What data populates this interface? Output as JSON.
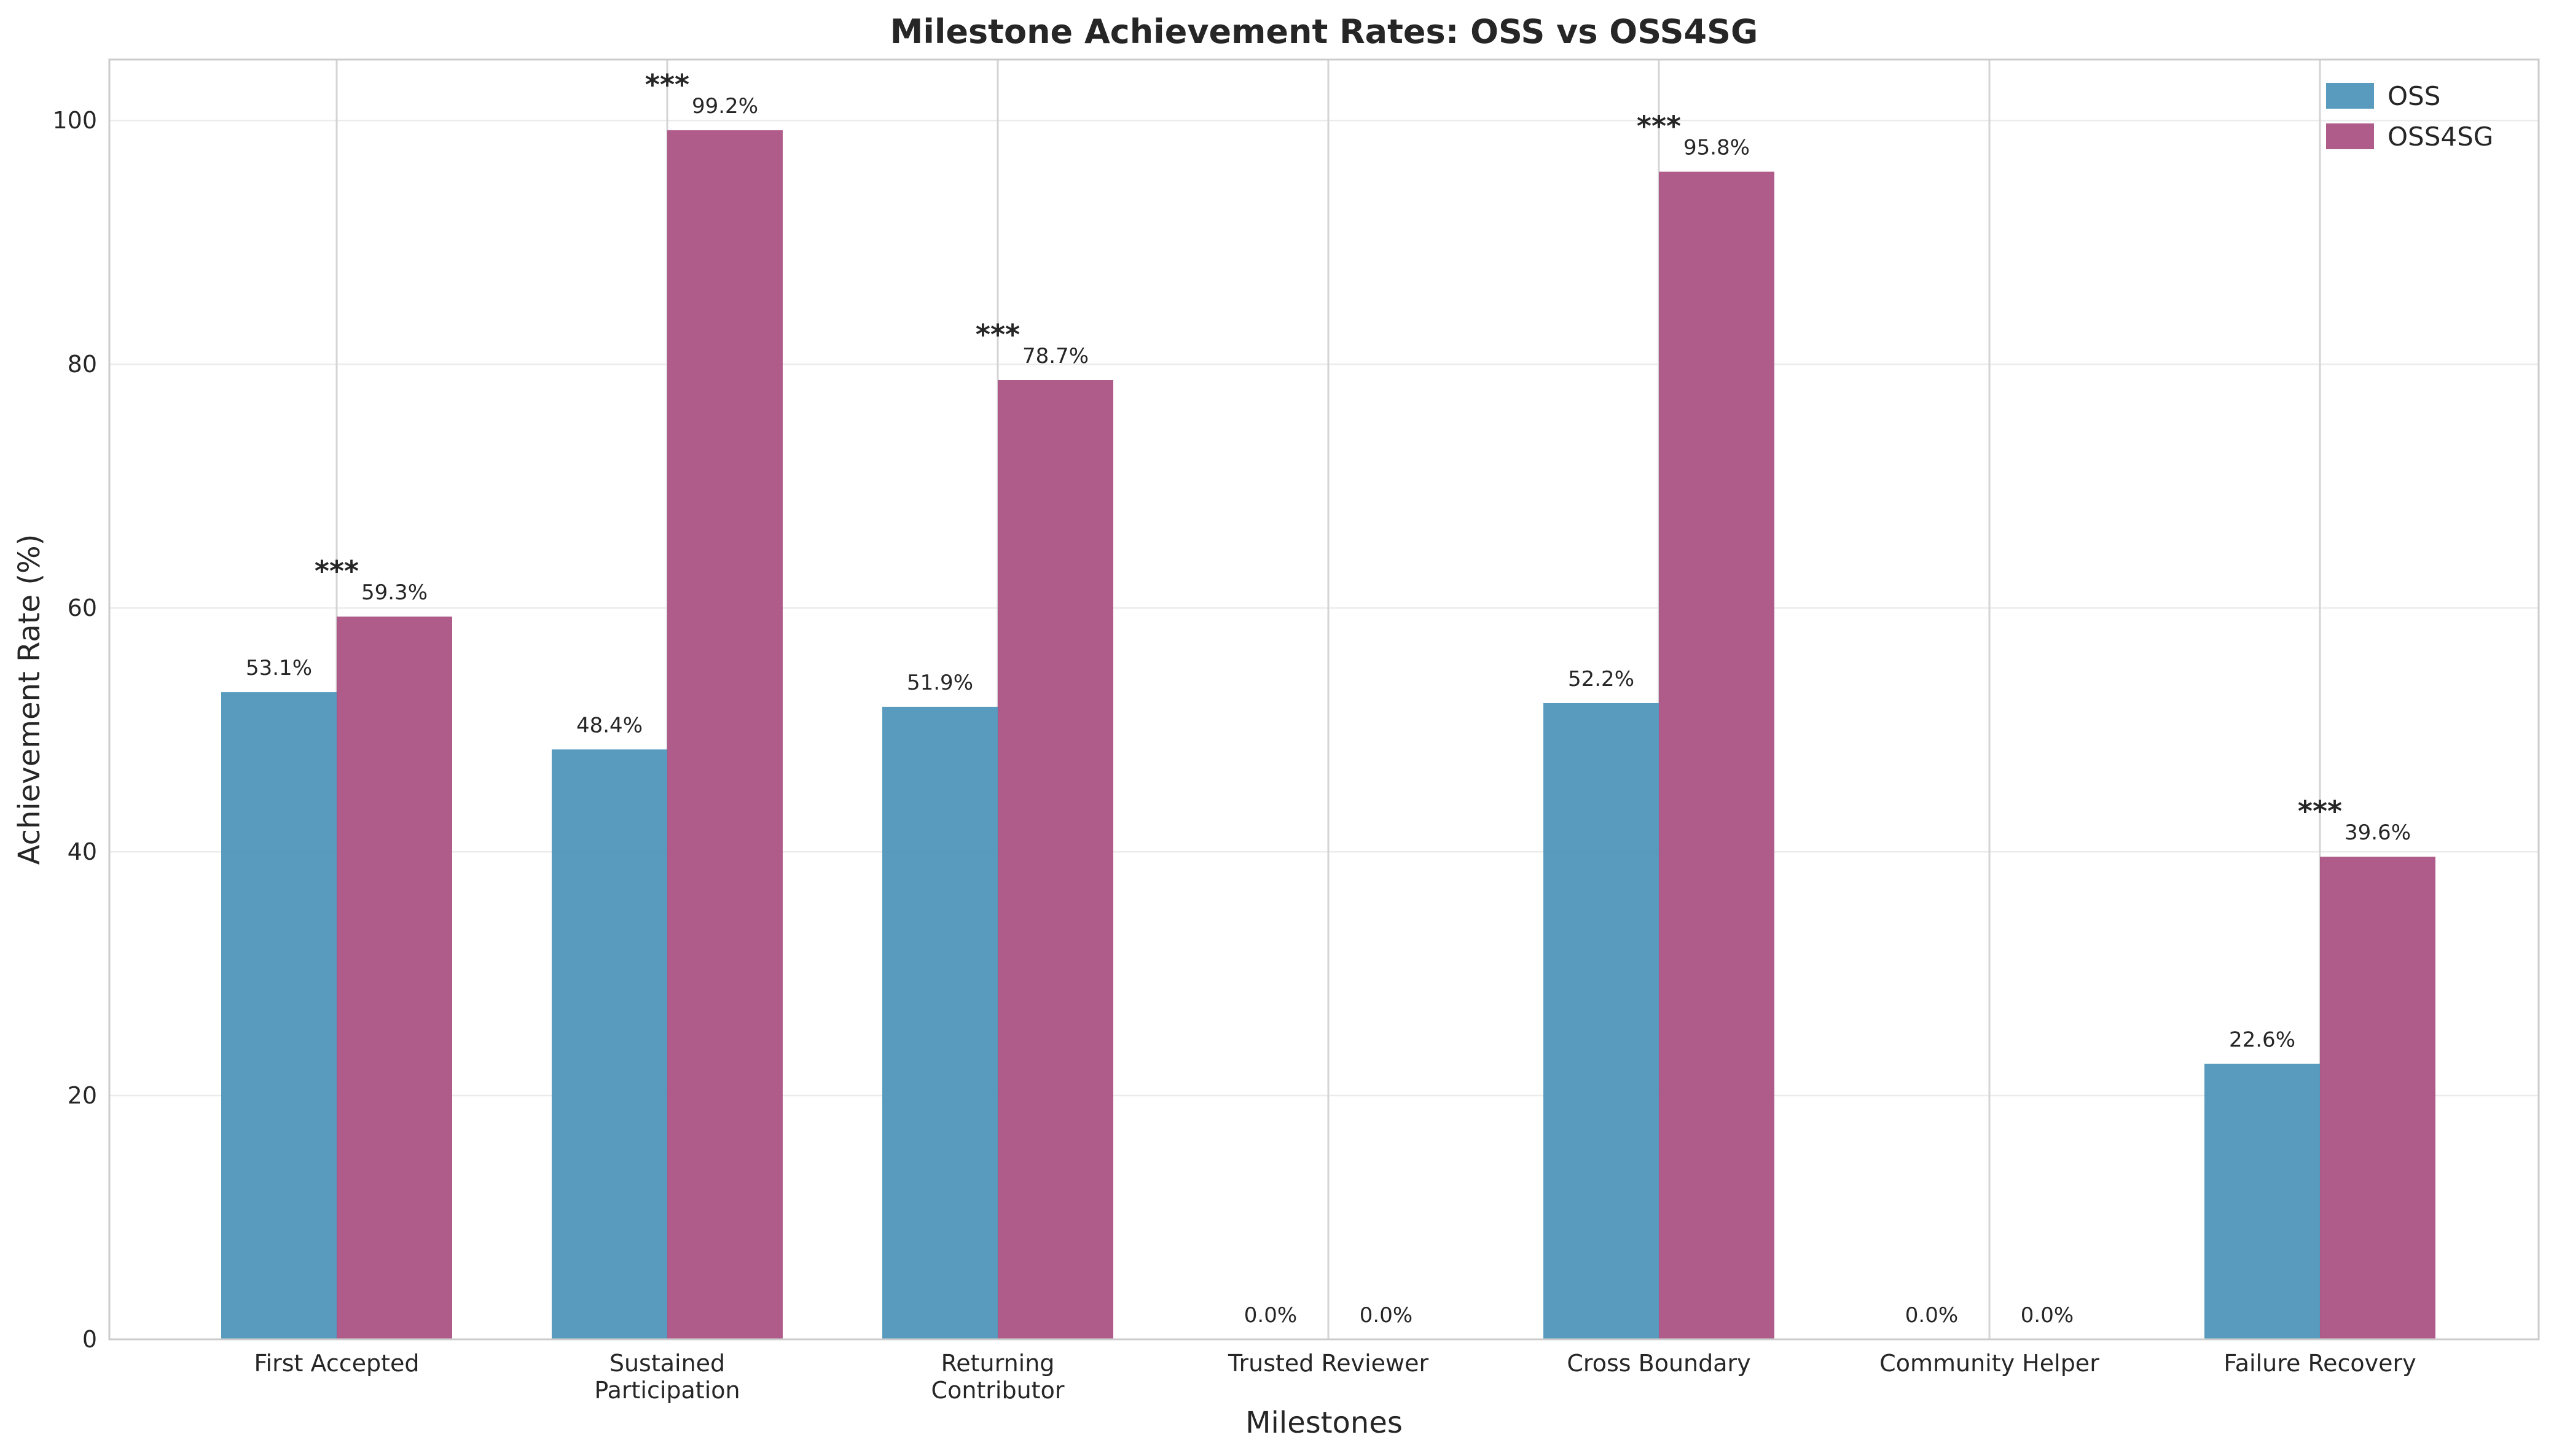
{
  "chart_data": {
    "type": "bar",
    "title": "Milestone Achievement Rates: OSS vs OSS4SG",
    "xlabel": "Milestones",
    "ylabel": "Achievement Rate (%)",
    "ylim": [
      0,
      105
    ],
    "yticks": [
      0,
      20,
      40,
      60,
      80,
      100
    ],
    "grid": true,
    "legend_position": "top-right",
    "categories": [
      [
        "First Accepted"
      ],
      [
        "Sustained",
        "Participation"
      ],
      [
        "Returning",
        "Contributor"
      ],
      [
        "Trusted Reviewer"
      ],
      [
        "Cross Boundary"
      ],
      [
        "Community Helper"
      ],
      [
        "Failure Recovery"
      ]
    ],
    "series": [
      {
        "name": "OSS",
        "color": "#4a93b8",
        "values": [
          53.1,
          48.4,
          51.9,
          0.0,
          52.2,
          0.0,
          22.6
        ],
        "labels": [
          "53.1%",
          "48.4%",
          "51.9%",
          "0.0%",
          "52.2%",
          "0.0%",
          "22.6%"
        ]
      },
      {
        "name": "OSS4SG",
        "color": "#a94e80",
        "values": [
          59.3,
          99.2,
          78.7,
          0.0,
          95.8,
          0.0,
          39.6
        ],
        "labels": [
          "59.3%",
          "99.2%",
          "78.7%",
          "0.0%",
          "95.8%",
          "0.0%",
          "39.6%"
        ]
      }
    ],
    "significance": [
      "***",
      "***",
      "***",
      "",
      "***",
      "",
      "***"
    ]
  }
}
